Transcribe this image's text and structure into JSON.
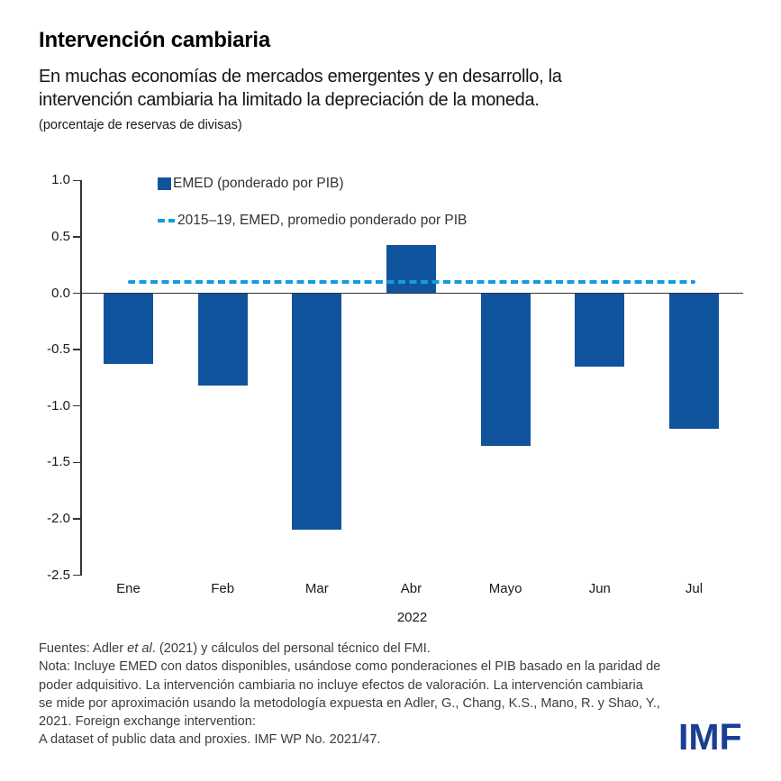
{
  "header": {
    "title": "Intervención cambiaria",
    "subtitle_line1": "En muchas economías de mercados emergentes y en desarrollo, la",
    "subtitle_line2": "intervención cambiaria ha limitado la depreciación de la moneda.",
    "units": "(porcentaje de reservas de divisas)"
  },
  "chart_data": {
    "type": "bar",
    "categories": [
      "Ene",
      "Feb",
      "Mar",
      "Abr",
      "Mayo",
      "Jun",
      "Jul"
    ],
    "values": [
      -0.63,
      -0.82,
      -2.1,
      0.43,
      -1.35,
      -0.65,
      -1.2
    ],
    "series_label": "EMED (ponderado por PIB)",
    "reference_line": {
      "label": "2015–19, EMED, promedio ponderado por PIB",
      "value": 0.1
    },
    "xlabel": "2022",
    "ylabel": "",
    "ylim": [
      -2.5,
      1.0
    ],
    "ytick_step": 0.5,
    "yticks": [
      "1.0",
      "0.5",
      "0.0",
      "-0.5",
      "-1.0",
      "-1.5",
      "-2.0",
      "-2.5"
    ],
    "grid": false,
    "legend_position": "top-inside",
    "bar_color": "#11549E",
    "line_color": "#149BDE"
  },
  "footer": {
    "sources_prefix": "Fuentes: Adler ",
    "sources_italic": "et al",
    "sources_suffix": ". (2021) y cálculos del personal técnico del FMI.",
    "note_lines": [
      "Nota: Incluye EMED con datos disponibles, usándose como ponderaciones el PIB basado en la paridad de",
      "poder adquisitivo. La intervención cambiaria no incluye efectos de valoración. La intervención cambiaria",
      "se mide por aproximación usando la metodología expuesta en Adler, G., Chang, K.S., Mano, R. y Shao, Y.,",
      "2021. Foreign exchange intervention:",
      "A dataset of public data and proxies. IMF WP No. 2021/47."
    ],
    "logo": "IMF",
    "logo_color": "#1B3E95"
  }
}
